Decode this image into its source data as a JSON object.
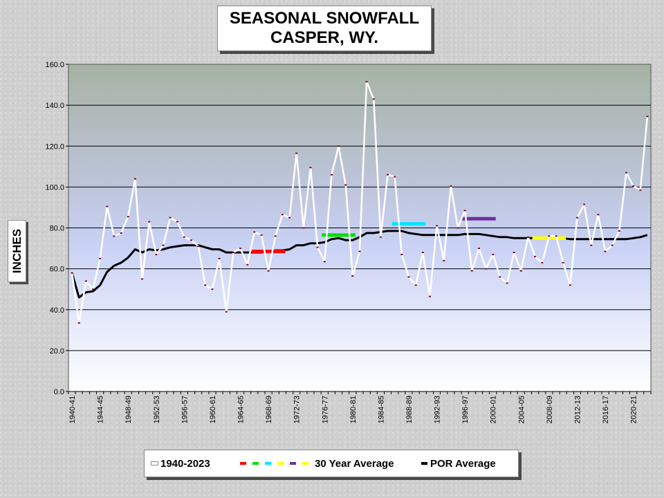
{
  "title": {
    "line1": "SEASONAL SNOWFALL",
    "line2": "CASPER, WY."
  },
  "legend": {
    "series": "1940-2023",
    "thirty_year": "30 Year Average",
    "por": "POR Average",
    "thirty_year_swatch_colors": [
      "#ff0000",
      "#00e000",
      "#00e5ff",
      "#ffff00",
      "#7030a0",
      "#ffff00"
    ]
  },
  "colors": {
    "series": "#ffffff",
    "series_marker": "#800020",
    "por": "#000000",
    "plot_top": "#a8b4a6",
    "plot_mid": "#c8d0f4",
    "plot_bottom": "#ffffff",
    "gridline": "#000000"
  },
  "chart_data": {
    "type": "line",
    "title": "SEASONAL SNOWFALL CASPER, WY.",
    "xlabel": "",
    "ylabel": "INCHES",
    "ylim": [
      0,
      160
    ],
    "yticks": [
      "0.0",
      "20.0",
      "40.0",
      "60.0",
      "80.0",
      "100.0",
      "120.0",
      "140.0",
      "160.0"
    ],
    "grid": true,
    "legend_position": "bottom",
    "x": [
      "1940-41",
      "1941-42",
      "1942-43",
      "1943-44",
      "1944-45",
      "1945-46",
      "1946-47",
      "1947-48",
      "1948-49",
      "1949-50",
      "1950-51",
      "1951-52",
      "1952-53",
      "1953-54",
      "1954-55",
      "1955-56",
      "1956-57",
      "1957-58",
      "1958-59",
      "1959-60",
      "1960-61",
      "1961-62",
      "1962-63",
      "1963-64",
      "1964-65",
      "1965-66",
      "1966-67",
      "1967-68",
      "1968-69",
      "1969-70",
      "1970-71",
      "1971-72",
      "1972-73",
      "1973-74",
      "1974-75",
      "1975-76",
      "1976-77",
      "1977-78",
      "1978-79",
      "1979-80",
      "1980-81",
      "1981-82",
      "1982-83",
      "1983-84",
      "1984-85",
      "1985-86",
      "1986-87",
      "1987-88",
      "1988-89",
      "1989-90",
      "1990-91",
      "1991-92",
      "1992-93",
      "1993-94",
      "1994-95",
      "1995-96",
      "1996-97",
      "1997-98",
      "1998-99",
      "1999-00",
      "2000-01",
      "2001-02",
      "2002-03",
      "2003-04",
      "2004-05",
      "2005-06",
      "2006-07",
      "2007-08",
      "2008-09",
      "2009-10",
      "2010-11",
      "2011-12",
      "2012-13",
      "2013-14",
      "2014-15",
      "2015-16",
      "2016-17",
      "2017-18",
      "2018-19",
      "2019-20",
      "2020-21",
      "2021-22",
      "2022-23"
    ],
    "xtick_labels": [
      "1940-41",
      "1944-45",
      "1948-49",
      "1952-53",
      "1956-57",
      "1960-61",
      "1964-65",
      "1968-69",
      "1972-73",
      "1976-77",
      "1980-81",
      "1984-85",
      "1988-89",
      "1992-93",
      "1996-97",
      "2000-01",
      "2004-05",
      "2008-09",
      "2012-13",
      "2016-17",
      "2020-21"
    ],
    "series": [
      {
        "name": "1940-2023",
        "values": [
          58,
          33.5,
          54,
          50,
          65,
          90.5,
          76,
          77.5,
          85.5,
          104,
          55,
          83,
          67,
          71.5,
          85,
          83,
          75.5,
          74,
          71,
          52,
          50,
          65,
          39,
          68,
          70,
          62,
          78,
          76.5,
          59,
          76,
          86.5,
          85,
          116.5,
          80,
          109.5,
          70.5,
          63.5,
          106,
          120,
          101,
          56.5,
          68.5,
          151.5,
          143,
          75.5,
          106,
          105,
          67,
          56,
          52,
          68,
          46.5,
          81,
          64,
          100.5,
          80,
          88.5,
          59,
          70,
          60,
          67,
          56,
          53,
          68,
          59,
          75.5,
          66,
          63,
          76,
          76,
          63,
          52,
          85,
          91.5,
          71.5,
          86.5,
          68.5,
          71.5,
          78.5,
          107,
          100.5,
          98.5,
          134.5
        ]
      },
      {
        "name": "POR Average",
        "values": [
          58,
          46,
          48.5,
          49,
          52,
          58.5,
          61.5,
          63,
          65.5,
          69.5,
          68,
          69.5,
          69,
          69.5,
          70.5,
          71,
          71.5,
          71.5,
          71.5,
          70.5,
          69.5,
          69.5,
          68,
          68,
          68,
          68,
          68,
          68,
          68.5,
          69,
          69,
          69.5,
          71.5,
          71.5,
          72.5,
          72.5,
          73,
          74.5,
          75,
          74,
          74,
          75.5,
          77.5,
          77.5,
          78,
          78.5,
          78.5,
          78.5,
          77.5,
          77,
          76.5,
          76.5,
          76.5,
          76.5,
          76.5,
          76.5,
          77,
          77,
          77,
          76.5,
          76,
          75.5,
          75.5,
          75,
          75,
          75,
          75,
          75,
          75,
          75,
          75,
          74.5,
          74.5,
          74.5,
          74.5,
          74.5,
          74.5,
          74.5,
          74.5,
          74.5,
          75,
          75.5,
          76.5
        ]
      }
    ],
    "thirty_year_averages": [
      {
        "x_start": "1966-67",
        "x_end": "1970-71",
        "value": 68.5,
        "color": "#ff0000"
      },
      {
        "x_start": "1976-77",
        "x_end": "1980-81",
        "value": 76.5,
        "color": "#00e000"
      },
      {
        "x_start": "1986-87",
        "x_end": "1990-91",
        "value": 82,
        "color": "#00e5ff"
      },
      {
        "x_start": "1996-97",
        "x_end": "2000-01",
        "value": 84.5,
        "color": "#7030a0"
      },
      {
        "x_start": "2006-07",
        "x_end": "2010-11",
        "value": 75,
        "color": "#ffff00"
      }
    ]
  }
}
